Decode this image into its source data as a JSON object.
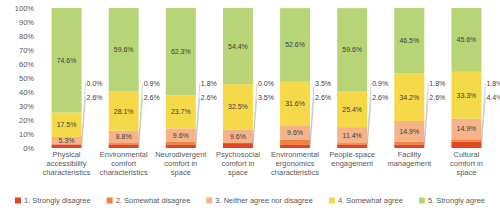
{
  "chart_data": {
    "type": "bar",
    "stacked": true,
    "data_labels": true,
    "grid": false,
    "legend": "bottom",
    "categories": [
      "Physical accessibility characteristics",
      "Environmental comfort characteristics",
      "Neurodivergent comfort in space",
      "Psychosocial comfort in space",
      "Environmental ergonomics characteristics",
      "People-space engagement",
      "Facility management",
      "Cultural comfort in space"
    ],
    "ylim": [
      0,
      100
    ],
    "yticks": [
      {
        "value": 0,
        "label": "0%"
      },
      {
        "value": 10,
        "label": "10%"
      },
      {
        "value": 20,
        "label": "20%"
      },
      {
        "value": 30,
        "label": "30%"
      },
      {
        "value": 40,
        "label": "40%"
      },
      {
        "value": 50,
        "label": "50%"
      },
      {
        "value": 60,
        "label": "60%"
      },
      {
        "value": 70,
        "label": "70%"
      },
      {
        "value": 80,
        "label": "80%"
      },
      {
        "value": 90,
        "label": "90%"
      },
      {
        "value": 100,
        "label": "100%"
      }
    ],
    "series": [
      {
        "name": "1. Strongly disagree",
        "color": "#e2461f",
        "values": [
          2.6,
          2.6,
          2.6,
          3.5,
          2.6,
          2.6,
          2.6,
          4.4
        ],
        "value_labels": [
          "2.6%",
          "2.6%",
          "2.6%",
          "3.5%",
          "2.6%",
          "2.6%",
          "2.6%",
          "4.4%"
        ]
      },
      {
        "name": "2. Somewhat disagree",
        "color": "#f0843f",
        "values": [
          0.0,
          0.9,
          1.8,
          0.0,
          3.5,
          0.9,
          1.8,
          1.8
        ],
        "value_labels": [
          "0.0%",
          "0.9%",
          "1.8%",
          "0.0%",
          "3.5%",
          "0.9%",
          "1.8%",
          "1.8%"
        ]
      },
      {
        "name": "3. Neither agree nor disagree",
        "color": "#f6b38a",
        "values": [
          5.3,
          8.8,
          9.6,
          9.6,
          9.6,
          11.4,
          14.9,
          14.9
        ],
        "value_labels": [
          "5.3%",
          "8.8%",
          "9.6%",
          "9.6%",
          "9.6%",
          "11.4%",
          "14.9%",
          "14.9%"
        ]
      },
      {
        "name": "4. Somewhat agree",
        "color": "#f6d949",
        "values": [
          17.5,
          28.1,
          23.7,
          32.5,
          31.6,
          25.4,
          34.2,
          33.3
        ],
        "value_labels": [
          "17.5%",
          "28.1%",
          "23.7%",
          "32.5%",
          "31.6%",
          "25.4%",
          "34.2%",
          "33.3%"
        ]
      },
      {
        "name": "5. Strongly agree",
        "color": "#b7d577",
        "values": [
          74.6,
          59.6,
          62.3,
          54.4,
          52.6,
          59.6,
          46.5,
          45.6
        ],
        "value_labels": [
          "74.6%",
          "59.6%",
          "62.3%",
          "54.4%",
          "52.6%",
          "59.6%",
          "46.5%",
          "45.6%"
        ]
      }
    ]
  }
}
